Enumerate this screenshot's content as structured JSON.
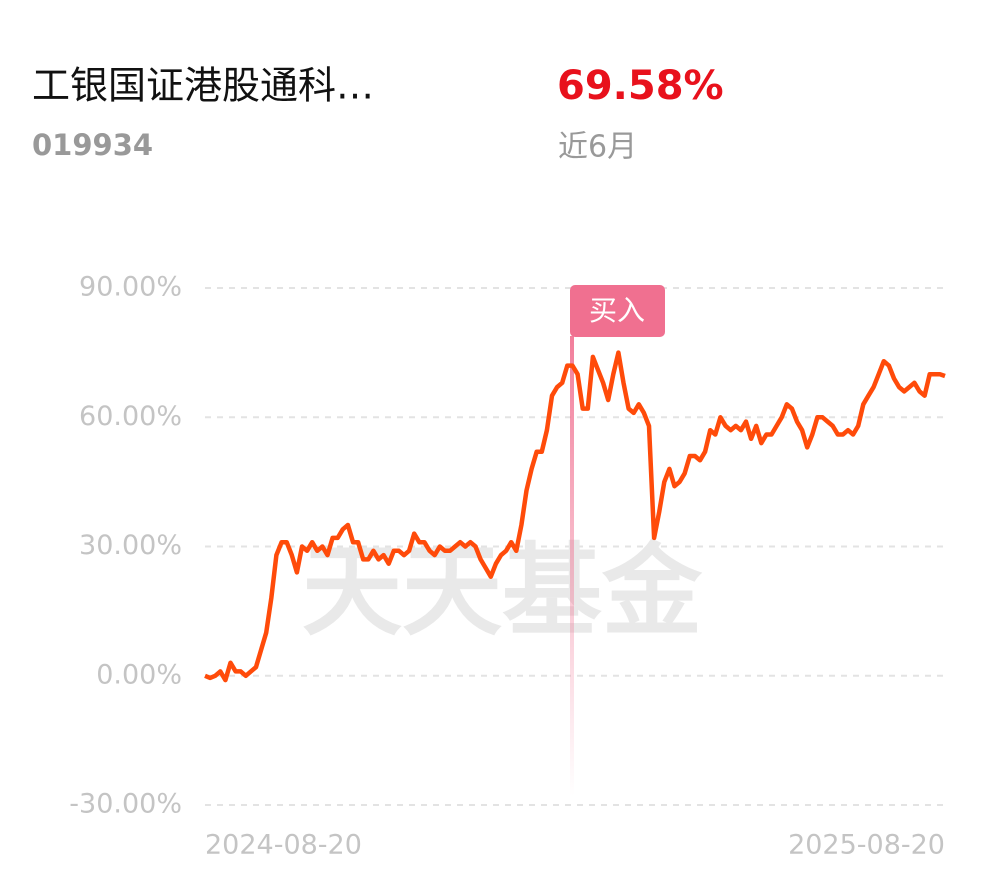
{
  "header": {
    "title": "工银国证港股通科…",
    "code": "019934",
    "return": "69.58%",
    "period": "近6月"
  },
  "watermark": "天天基金",
  "buy_label": "买入",
  "chart_data": {
    "type": "line",
    "categories": [
      "2024-08-20",
      null,
      null,
      null,
      null,
      null,
      null,
      null,
      null,
      null,
      null,
      null,
      null,
      null,
      null,
      null,
      null,
      null,
      null,
      null,
      null,
      null,
      null,
      null,
      null,
      null,
      null,
      null,
      null,
      null,
      null,
      null,
      null,
      null,
      null,
      null,
      null,
      null,
      null,
      null,
      null,
      null,
      null,
      null,
      null,
      null,
      null,
      null,
      null,
      null,
      null,
      null,
      null,
      null,
      null,
      null,
      null,
      null,
      null,
      null,
      null,
      null,
      null,
      null,
      null,
      null,
      null,
      null,
      null,
      null,
      null,
      null,
      null,
      null,
      null,
      null,
      null,
      null,
      null,
      null,
      null,
      null,
      null,
      null,
      null,
      null,
      null,
      null,
      null,
      null,
      null,
      null,
      null,
      null,
      null,
      null,
      null,
      null,
      null,
      null,
      null,
      null,
      null,
      null,
      null,
      null,
      null,
      null,
      null,
      null,
      null,
      null,
      null,
      null,
      null,
      null,
      null,
      null,
      null,
      null,
      null,
      null,
      null,
      null,
      null,
      null,
      null,
      null,
      null,
      null,
      null,
      null,
      null,
      null,
      null,
      null,
      null,
      null,
      null,
      null,
      null,
      null,
      null,
      null,
      null,
      "2025-08-20"
    ],
    "series": [
      {
        "color": "#ff4b0a",
        "values": [
          0,
          -0.5,
          0,
          1,
          -1,
          3,
          1,
          1,
          0,
          1,
          2,
          6,
          10,
          18,
          28,
          31,
          31,
          28,
          24,
          30,
          29,
          31,
          29,
          30,
          28,
          32,
          32,
          34,
          35,
          31,
          31,
          27,
          27,
          29,
          27,
          28,
          26,
          29,
          29,
          28,
          29,
          33,
          31,
          31,
          29,
          28,
          30,
          29,
          29,
          30,
          31,
          30,
          31,
          30,
          27,
          25,
          23,
          26,
          28,
          29,
          31,
          29,
          35,
          43,
          48,
          52,
          52,
          57,
          65,
          67,
          68,
          72,
          72,
          70,
          62,
          62,
          74,
          71,
          68,
          64,
          70,
          75,
          68,
          62,
          61,
          63,
          61,
          58,
          32,
          38,
          45,
          48,
          44,
          45,
          47,
          51,
          51,
          50,
          52,
          57,
          56,
          60,
          58,
          57,
          58,
          57,
          59,
          55,
          58,
          54,
          56,
          56,
          58,
          60,
          63,
          62,
          59,
          57,
          53,
          56,
          60,
          60,
          59,
          58,
          56,
          56,
          57,
          56,
          58,
          63,
          65,
          67,
          70,
          73,
          72,
          69,
          67,
          66,
          67,
          68,
          66,
          65,
          70,
          70,
          70,
          69.58
        ]
      }
    ],
    "ylim": [
      -30,
      90
    ],
    "yticks": [
      {
        "value": -30,
        "label": "-30.00%"
      },
      {
        "value": 0,
        "label": "0.00%"
      },
      {
        "value": 30,
        "label": "30.00%"
      },
      {
        "value": 60,
        "label": "60.00%"
      },
      {
        "value": 90,
        "label": "90.00%"
      }
    ],
    "grid": true
  }
}
